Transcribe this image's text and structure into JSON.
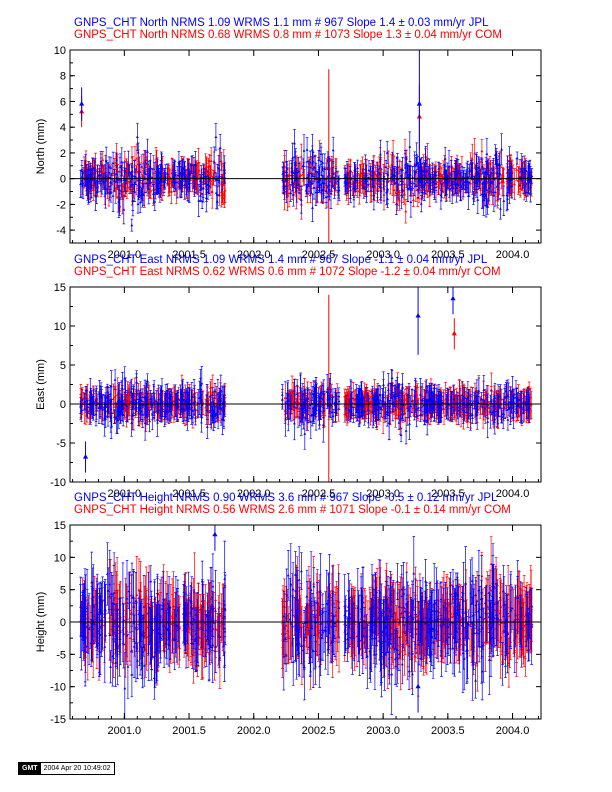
{
  "chart_data": [
    {
      "type": "scatter",
      "component": "north",
      "ylabel": "North (mm)",
      "ylim": [
        -5,
        10
      ],
      "yticks": [
        -4,
        -2,
        0,
        2,
        4,
        6,
        8,
        10
      ],
      "xlim": [
        2000.58,
        2004.22
      ],
      "xticks": [
        "2001.0",
        "2001.5",
        "2002.0",
        "2002.5",
        "2003.0",
        "2003.5",
        "2004.0"
      ],
      "header": [
        {
          "text": "GNPS_CHT North NRMS 1.09 WRMS  1.1 mm # 967 Slope    1.4 ±  0.03 mm/yr JPL",
          "color": "#0000ff"
        },
        {
          "text": "GNPS_CHT North NRMS 0.68 WRMS  0.8 mm # 1073 Slope    1.3 ±  0.04 mm/yr COM",
          "color": "#ff0000"
        }
      ],
      "series": [
        {
          "name": "JPL",
          "color": "#0000ff",
          "count": 967,
          "scatter_sd": 1.0,
          "err_sd": 0.9,
          "outliers": [
            {
              "x": 2000.67,
              "y": 5.8,
              "err": 1.3
            },
            {
              "x": 2003.28,
              "y": 5.8,
              "err": 4.5
            }
          ]
        },
        {
          "name": "COM",
          "color": "#ff0000",
          "count": 1073,
          "scatter_sd": 0.8,
          "err_sd": 0.9,
          "outliers": [
            {
              "x": 2000.67,
              "y": 5.2,
              "err": 1.2
            },
            {
              "x": 2002.58,
              "y": 1.5,
              "err": 7.0
            },
            {
              "x": 2003.28,
              "y": 4.8,
              "err": 2.5
            }
          ]
        }
      ],
      "data_spans": [
        [
          2000.66,
          2001.78
        ],
        [
          2002.22,
          2002.66
        ],
        [
          2002.7,
          2004.15
        ]
      ]
    },
    {
      "type": "scatter",
      "component": "east",
      "ylabel": "East (mm)",
      "ylim": [
        -10,
        15
      ],
      "yticks": [
        -10,
        -5,
        0,
        5,
        10,
        15
      ],
      "xlim": [
        2000.58,
        2004.22
      ],
      "xticks": [
        "2001.0",
        "2001.5",
        "2002.0",
        "2002.5",
        "2003.0",
        "2003.5",
        "2004.0"
      ],
      "header": [
        {
          "text": "GNPS_CHT East NRMS 1.09 WRMS  1.4 mm # 967 Slope   -1.1 ±  0.04 mm/yr JPL",
          "color": "#0000ff"
        },
        {
          "text": "GNPS_CHT East NRMS 0.62 WRMS  0.6 mm # 1072 Slope   -1.2 ±  0.04 mm/yr COM",
          "color": "#ff0000"
        }
      ],
      "series": [
        {
          "name": "JPL",
          "color": "#0000ff",
          "count": 967,
          "scatter_sd": 1.3,
          "err_sd": 1.6,
          "outliers": [
            {
              "x": 2003.27,
              "y": 11.3,
              "err": 5.0
            },
            {
              "x": 2003.54,
              "y": 13.5,
              "err": 2.0
            },
            {
              "x": 2000.7,
              "y": -6.8,
              "err": 2.0
            }
          ]
        },
        {
          "name": "COM",
          "color": "#ff0000",
          "count": 1072,
          "scatter_sd": 0.7,
          "err_sd": 1.6,
          "outliers": [
            {
              "x": 2002.58,
              "y": 2.0,
              "err": 12.0
            },
            {
              "x": 2003.55,
              "y": 9.0,
              "err": 2.0
            }
          ]
        }
      ],
      "data_spans": [
        [
          2000.66,
          2001.78
        ],
        [
          2002.22,
          2002.66
        ],
        [
          2002.7,
          2004.15
        ]
      ]
    },
    {
      "type": "scatter",
      "component": "height",
      "ylabel": "Height (mm)",
      "ylim": [
        -15,
        15
      ],
      "yticks": [
        -15,
        -10,
        -5,
        0,
        5,
        10,
        15
      ],
      "xlim": [
        2000.58,
        2004.22
      ],
      "xticks": [
        "2001.0",
        "2001.5",
        "2002.0",
        "2002.5",
        "2003.0",
        "2003.5",
        "2004.0"
      ],
      "header": [
        {
          "text": "GNPS_CHT Height NRMS 0.90 WRMS  3.6 mm # 967 Slope   -0.5 ±  0.12 mm/yr JPL",
          "color": "#0000ff"
        },
        {
          "text": "GNPS_CHT Height NRMS 0.56 WRMS  2.6 mm # 1071 Slope   -0.1 ±  0.14 mm/yr COM",
          "color": "#ff0000"
        }
      ],
      "series": [
        {
          "name": "JPL",
          "color": "#0000ff",
          "count": 967,
          "scatter_sd": 3.6,
          "err_sd": 4.5,
          "outliers": [
            {
              "x": 2001.7,
              "y": 13.5,
              "err": 2.5
            },
            {
              "x": 2003.27,
              "y": -10.0,
              "err": 4.0
            }
          ]
        },
        {
          "name": "COM",
          "color": "#ff0000",
          "count": 1071,
          "scatter_sd": 2.6,
          "err_sd": 4.5,
          "outliers": []
        }
      ],
      "data_spans": [
        [
          2000.66,
          2001.78
        ],
        [
          2002.22,
          2002.66
        ],
        [
          2002.7,
          2004.15
        ]
      ]
    }
  ],
  "footer": {
    "logo": "GMT",
    "timestamp": "2004 Apr 20 10:49:02"
  }
}
